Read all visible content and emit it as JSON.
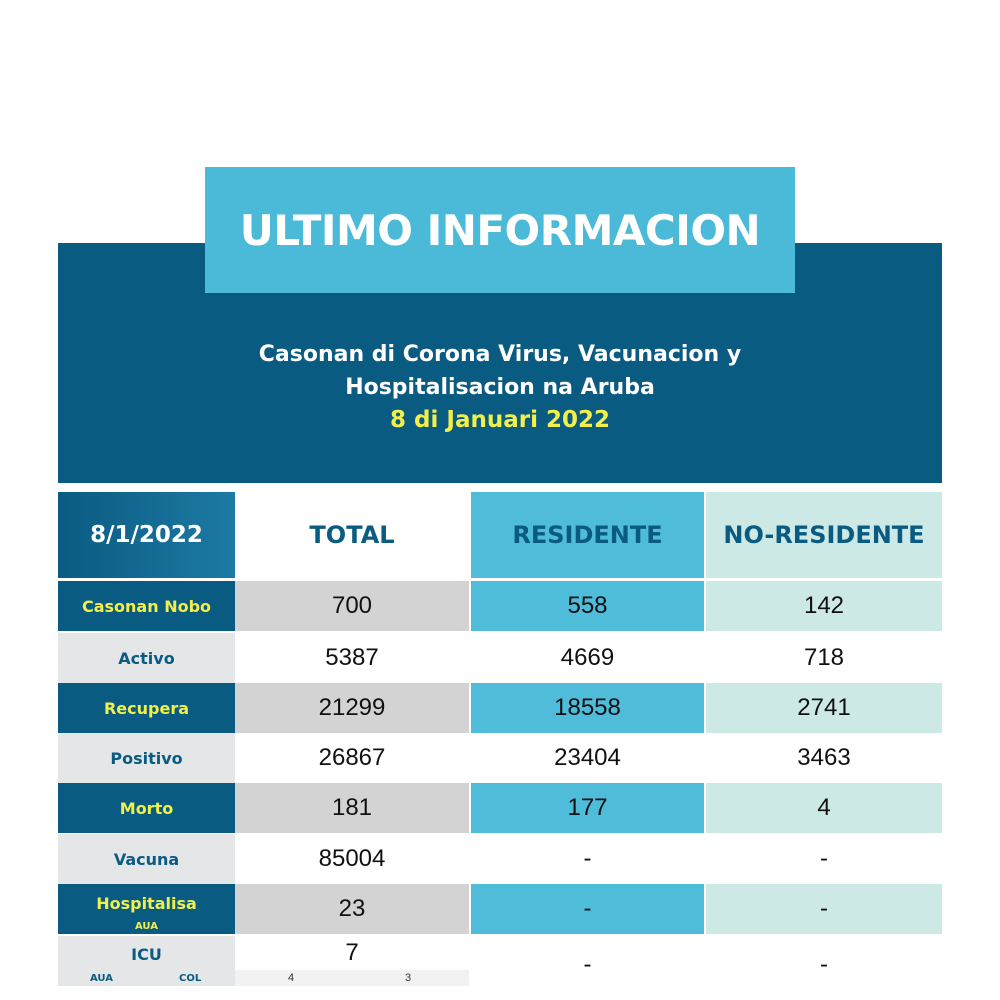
{
  "title": "ULTIMO INFORMACION",
  "subtitle": {
    "line1": "Casonan di Corona Virus, Vacunacion y",
    "line2": "Hospitalisacion na Aruba",
    "date": "8 di Januari 2022"
  },
  "table": {
    "header": {
      "date": "8/1/2022",
      "total": "TOTAL",
      "residente": "RESIDENTE",
      "no_residente": "NO-RESIDENTE"
    },
    "rows": [
      {
        "label": "Casonan Nobo",
        "total": "700",
        "residente": "558",
        "no_residente": "142"
      },
      {
        "label": "Activo",
        "total": "5387",
        "residente": "4669",
        "no_residente": "718"
      },
      {
        "label": "Recupera",
        "total": "21299",
        "residente": "18558",
        "no_residente": "2741"
      },
      {
        "label": "Positivo",
        "total": "26867",
        "residente": "23404",
        "no_residente": "3463"
      },
      {
        "label": "Morto",
        "total": "181",
        "residente": "177",
        "no_residente": "4"
      },
      {
        "label": "Vacuna",
        "total": "85004",
        "residente": "-",
        "no_residente": "-"
      },
      {
        "label": "Hospitalisa",
        "sublabel": "AUA",
        "total": "23",
        "residente": "-",
        "no_residente": "-"
      },
      {
        "label": "ICU",
        "sublabels": [
          "AUA",
          "COL"
        ],
        "total": "7",
        "subvalues": [
          "4",
          "3"
        ],
        "residente": "-",
        "no_residente": "-"
      }
    ]
  },
  "colors": {
    "navy": "#0a5b82",
    "sky": "#4bbad8",
    "mint": "#cde9e6",
    "highlight_yellow": "#f2ef4a"
  }
}
